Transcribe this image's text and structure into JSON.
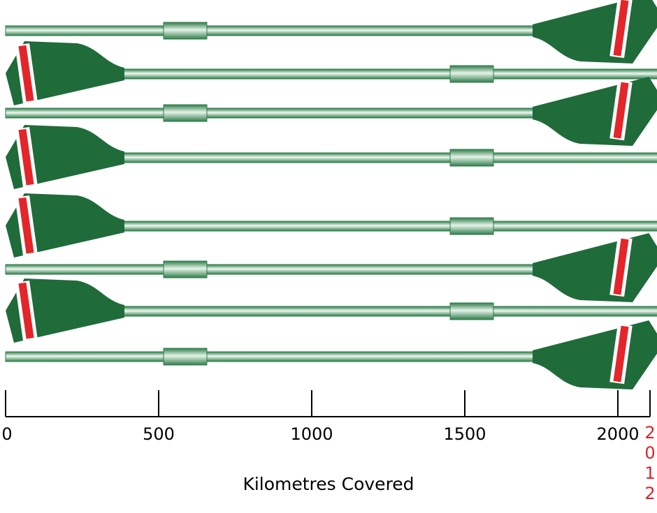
{
  "chart_data": {
    "type": "pictorial-bar",
    "xlabel": "Kilometres Covered",
    "xlim": [
      0,
      2115
    ],
    "x_ticks": [
      0,
      500,
      1000,
      1500,
      2000
    ],
    "x_tick_labels": [
      "0",
      "500",
      "1000",
      "1500",
      "2000"
    ],
    "target": {
      "value": 2115,
      "label": [
        "2",
        "0",
        "1",
        "2"
      ]
    },
    "series": [
      {
        "value": 2115,
        "blade_side": "right"
      },
      {
        "value": 2115,
        "blade_side": "left"
      },
      {
        "value": 2115,
        "blade_side": "right"
      },
      {
        "value": 2115,
        "blade_side": "left"
      },
      {
        "value": 2115,
        "blade_side": "left"
      },
      {
        "value": 2115,
        "blade_side": "right"
      },
      {
        "value": 2115,
        "blade_side": "left"
      },
      {
        "value": 2115,
        "blade_side": "right"
      }
    ]
  },
  "colors": {
    "blade": "#1f6b3a",
    "shaft_dark": "#2e7d4a",
    "shaft_light": "#e8f5ea",
    "stripe_red": "#e4252a",
    "stripe_white": "#ffffff",
    "axis": "#000000",
    "target_label": "#d9232a"
  }
}
